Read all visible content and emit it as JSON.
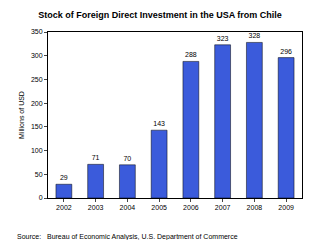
{
  "chart_data": {
    "type": "bar",
    "title": "Stock of Foreign Direct Investment in the USA from Chile",
    "y_label": "Millions of USD",
    "categories": [
      "2002",
      "2003",
      "2004",
      "2005",
      "2006",
      "2007",
      "2008",
      "2009"
    ],
    "values": [
      29,
      71,
      70,
      143,
      288,
      323,
      328,
      296
    ],
    "color": "#3b5bdb",
    "ylim": [
      0,
      350
    ],
    "yticks": [
      0,
      50,
      100,
      150,
      200,
      250,
      300,
      350
    ],
    "grid": false,
    "data_labels": true,
    "annotations": [
      "Source:   Bureau of Economic Analysis, U.S. Department of Commerce"
    ]
  }
}
